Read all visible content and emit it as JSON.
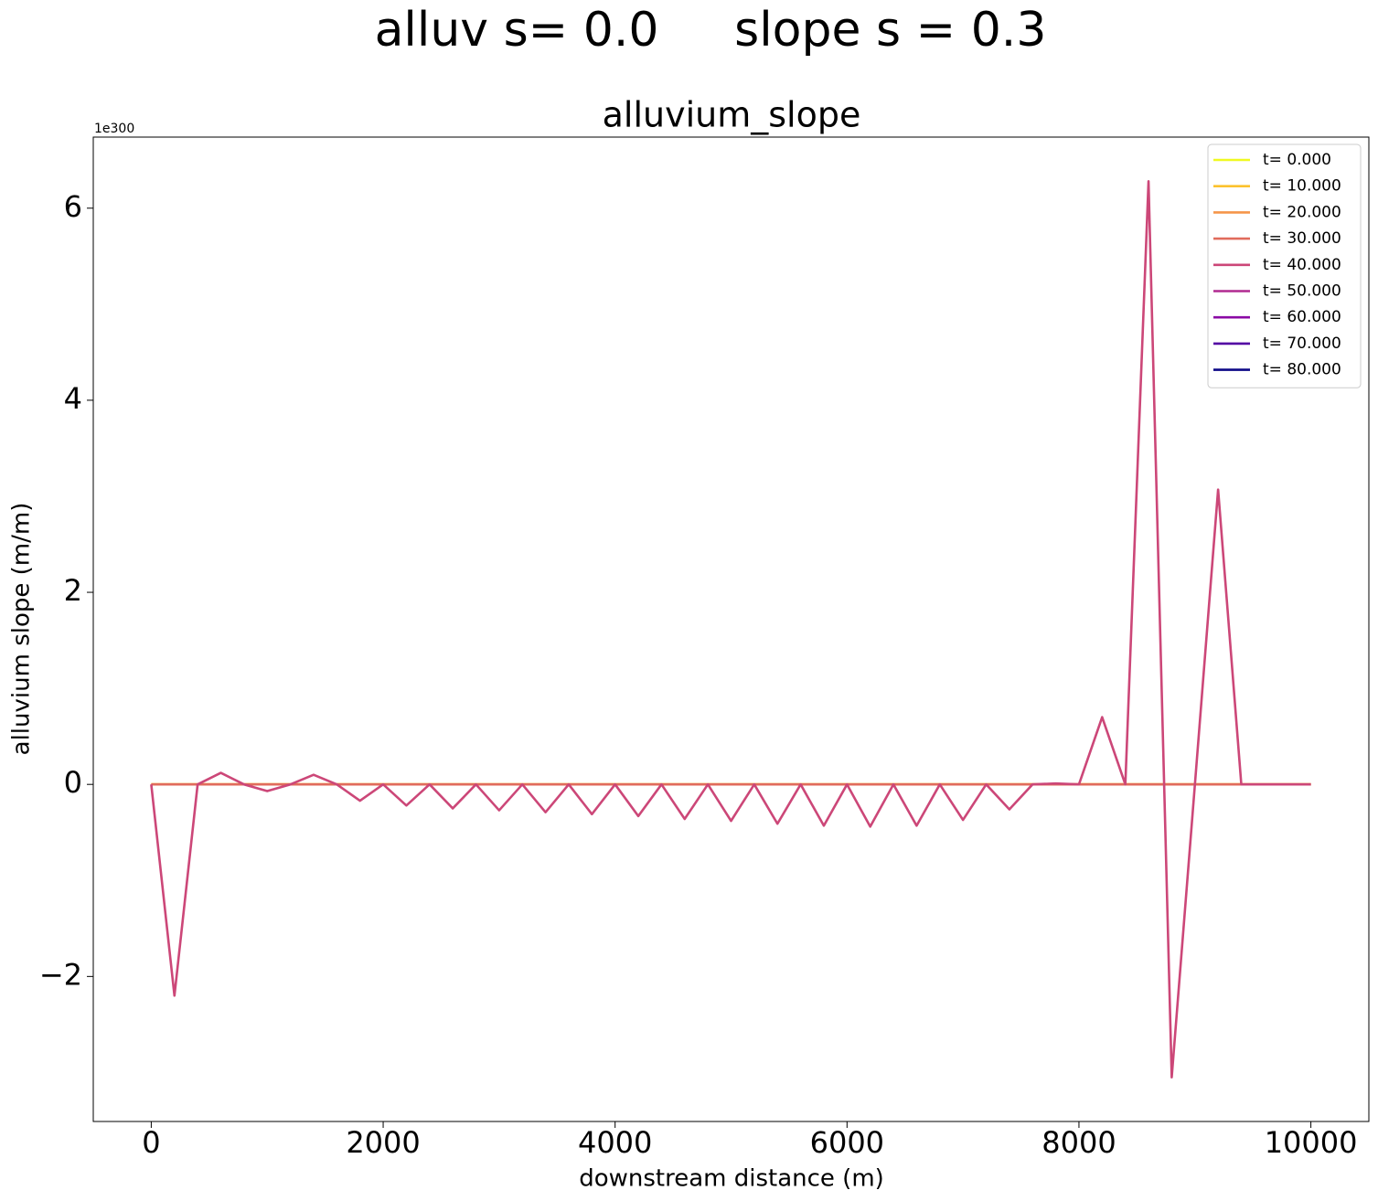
{
  "chart_data": {
    "type": "line",
    "suptitle": "alluv s= 0.0     slope s = 0.3",
    "title": "alluvium_slope",
    "x_label": "downstream distance (m)",
    "y_label": "alluvium slope (m/m)",
    "y_offset_label": "1e300",
    "x": [
      0,
      200,
      400,
      600,
      800,
      1000,
      1200,
      1400,
      1600,
      1800,
      2000,
      2200,
      2400,
      2600,
      2800,
      3000,
      3200,
      3400,
      3600,
      3800,
      4000,
      4200,
      4400,
      4600,
      4800,
      5000,
      5200,
      5400,
      5600,
      5800,
      6000,
      6200,
      6400,
      6600,
      6800,
      7000,
      7200,
      7400,
      7600,
      7800,
      8000,
      8200,
      8400,
      8600,
      8800,
      9000,
      9200,
      9400,
      9600,
      9800,
      10000
    ],
    "xlim": [
      -500,
      10500
    ],
    "xticks": [
      0,
      2000,
      4000,
      6000,
      8000,
      10000
    ],
    "ylim": [
      -3.51,
      6.74
    ],
    "yticks": [
      {
        "value": -2,
        "label": "−2"
      },
      0,
      2,
      4,
      6
    ],
    "legend": "upper right",
    "series": [
      {
        "name": "t= 0.000",
        "color": "#f0f921",
        "values": [
          0,
          0,
          0,
          0,
          0,
          0,
          0,
          0,
          0,
          0,
          0,
          0,
          0,
          0,
          0,
          0,
          0,
          0,
          0,
          0,
          0,
          0,
          0,
          0,
          0,
          0,
          0,
          0,
          0,
          0,
          0,
          0,
          0,
          0,
          0,
          0,
          0,
          0,
          0,
          0,
          0,
          0,
          0,
          0,
          0,
          0,
          0,
          0,
          0,
          0,
          0
        ]
      },
      {
        "name": "t= 10.000",
        "color": "#fcc22d",
        "values": [
          0,
          0,
          0,
          0,
          0,
          0,
          0,
          0,
          0,
          0,
          0,
          0,
          0,
          0,
          0,
          0,
          0,
          0,
          0,
          0,
          0,
          0,
          0,
          0,
          0,
          0,
          0,
          0,
          0,
          0,
          0,
          0,
          0,
          0,
          0,
          0,
          0,
          0,
          0,
          0,
          0,
          0,
          0,
          0,
          0,
          0,
          0,
          0,
          0,
          0,
          0
        ]
      },
      {
        "name": "t= 20.000",
        "color": "#f5954a",
        "values": [
          0,
          0,
          0,
          0,
          0,
          0,
          0,
          0,
          0,
          0,
          0,
          0,
          0,
          0,
          0,
          0,
          0,
          0,
          0,
          0,
          0,
          0,
          0,
          0,
          0,
          0,
          0,
          0,
          0,
          0,
          0,
          0,
          0,
          0,
          0,
          0,
          0,
          0,
          0,
          0,
          0,
          0,
          0,
          0,
          0,
          0,
          0,
          0,
          0,
          0,
          0
        ]
      },
      {
        "name": "t= 30.000",
        "color": "#e16b5c",
        "values": [
          0,
          0,
          0,
          0,
          0,
          0,
          0,
          0,
          0,
          0,
          0,
          0,
          0,
          0,
          0,
          0,
          0,
          0,
          0,
          0,
          0,
          0,
          0,
          0,
          0,
          0,
          0,
          0,
          0,
          0,
          0,
          0,
          0,
          0,
          0,
          0,
          0,
          0,
          0,
          0,
          0,
          0,
          0,
          0,
          0,
          0,
          0,
          0,
          0,
          0,
          0
        ]
      },
      {
        "name": "t= 40.000",
        "color": "#cc4778",
        "values": [
          0,
          -2.2,
          0,
          0.12,
          0,
          -0.07,
          0,
          0.1,
          0,
          -0.17,
          0,
          -0.22,
          0,
          -0.25,
          0,
          -0.27,
          0,
          -0.29,
          0,
          -0.31,
          0,
          -0.33,
          0,
          -0.36,
          0,
          -0.38,
          0,
          -0.41,
          0,
          -0.43,
          0,
          -0.44,
          0,
          -0.43,
          0,
          -0.37,
          0,
          -0.26,
          0,
          0.01,
          0,
          0.7,
          0,
          6.28,
          -3.05,
          0,
          3.07,
          0,
          0,
          0,
          0
        ]
      },
      {
        "name": "t= 50.000",
        "color": "#b12a90",
        "values": [
          null,
          null,
          null,
          null,
          null,
          null,
          null,
          null,
          null,
          null,
          null,
          null,
          null,
          null,
          null,
          null,
          null,
          null,
          null,
          null,
          null,
          null,
          null,
          null,
          null,
          null,
          null,
          null,
          null,
          null,
          null,
          null,
          null,
          null,
          null,
          null,
          null,
          null,
          null,
          null,
          null,
          null,
          null,
          null,
          null,
          null,
          null,
          null,
          null,
          null,
          null
        ]
      },
      {
        "name": "t= 60.000",
        "color": "#8b0aa5",
        "values": [
          null,
          null,
          null,
          null,
          null,
          null,
          null,
          null,
          null,
          null,
          null,
          null,
          null,
          null,
          null,
          null,
          null,
          null,
          null,
          null,
          null,
          null,
          null,
          null,
          null,
          null,
          null,
          null,
          null,
          null,
          null,
          null,
          null,
          null,
          null,
          null,
          null,
          null,
          null,
          null,
          null,
          null,
          null,
          null,
          null,
          null,
          null,
          null,
          null,
          null,
          null
        ]
      },
      {
        "name": "t= 70.000",
        "color": "#5302a3",
        "values": [
          null,
          null,
          null,
          null,
          null,
          null,
          null,
          null,
          null,
          null,
          null,
          null,
          null,
          null,
          null,
          null,
          null,
          null,
          null,
          null,
          null,
          null,
          null,
          null,
          null,
          null,
          null,
          null,
          null,
          null,
          null,
          null,
          null,
          null,
          null,
          null,
          null,
          null,
          null,
          null,
          null,
          null,
          null,
          null,
          null,
          null,
          null,
          null,
          null,
          null,
          null
        ]
      },
      {
        "name": "t= 80.000",
        "color": "#0d0887",
        "values": [
          null,
          null,
          null,
          null,
          null,
          null,
          null,
          null,
          null,
          null,
          null,
          null,
          null,
          null,
          null,
          null,
          null,
          null,
          null,
          null,
          null,
          null,
          null,
          null,
          null,
          null,
          null,
          null,
          null,
          null,
          null,
          null,
          null,
          null,
          null,
          null,
          null,
          null,
          null,
          null,
          null,
          null,
          null,
          null,
          null,
          null,
          null,
          null,
          null,
          null,
          null
        ]
      }
    ]
  }
}
